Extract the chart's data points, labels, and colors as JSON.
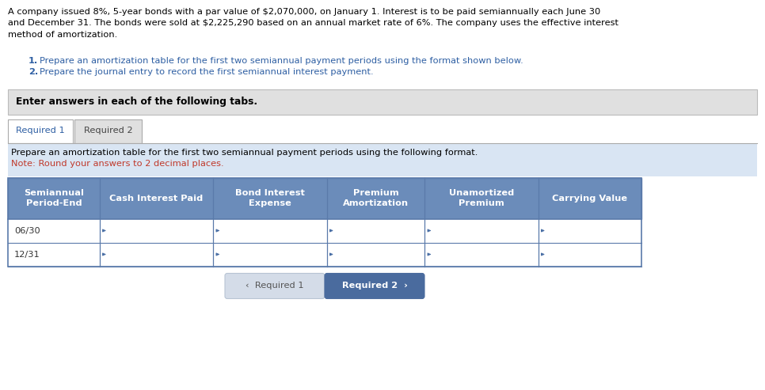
{
  "title_line1": "A company issued 8%, 5-year bonds with a par value of $2,070,000, on January 1. Interest is to be paid semiannually each June 30",
  "title_line2": "and December 31. The bonds were sold at $2,225,290 based on an annual market rate of 6%. The company uses the effective interest",
  "title_line3": "method of amortization.",
  "inst1_num": "1.",
  "inst1_text": "Prepare an amortization table for the first two semiannual payment periods using the format shown below.",
  "inst2_num": "2.",
  "inst2_text": "Prepare the journal entry to record the first semiannual interest payment.",
  "enter_answers_text": "Enter answers in each of the following tabs.",
  "tab1_label": "Required 1",
  "tab2_label": "Required 2",
  "prepare_text": "Prepare an amortization table for the first two semiannual payment periods using the following format.",
  "note_text": "Note: Round your answers to 2 decimal places.",
  "col_headers": [
    "Semiannual\nPeriod-End",
    "Cash Interest Paid",
    "Bond Interest\nExpense",
    "Premium\nAmortization",
    "Unamortized\nPremium",
    "Carrying Value"
  ],
  "row_labels": [
    "06/30",
    "12/31"
  ],
  "btn_left_text": "‹  Required 1",
  "btn_right_text": "Required 2  ›",
  "bg_color": "#ffffff",
  "gray_box_color": "#e0e0e0",
  "blue_header_color": "#6b8cba",
  "light_blue_bg": "#d9e5f3",
  "tab_active_color": "#ffffff",
  "tab_inactive_color": "#e0e0e0",
  "nav_btn_left_color": "#d4dce8",
  "nav_btn_right_color": "#4a6b9e",
  "title_color": "#000000",
  "instruction_color": "#2e5fa3",
  "header_text_color": "#ffffff",
  "row_text_color": "#333333",
  "note_color": "#c0392b",
  "border_color": "#5a7aaa",
  "cell_bg": "#ffffff",
  "input_arrow_color": "#4a6fa5",
  "tab_border_color": "#aaaaaa"
}
